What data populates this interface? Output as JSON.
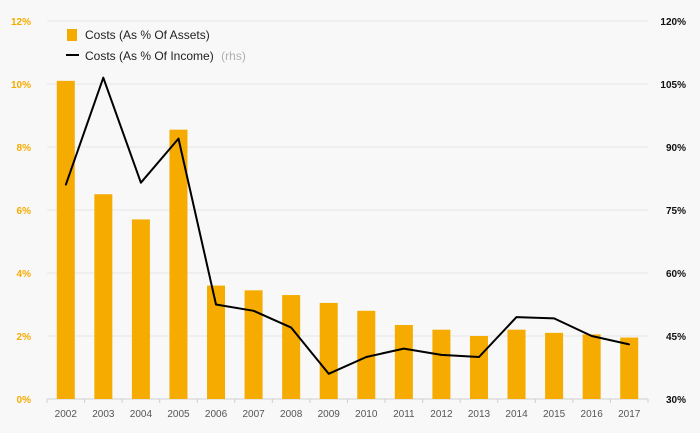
{
  "chart_data": {
    "type": "bar",
    "categories": [
      "2002",
      "2003",
      "2004",
      "2005",
      "2006",
      "2007",
      "2008",
      "2009",
      "2010",
      "2011",
      "2012",
      "2013",
      "2014",
      "2015",
      "2016",
      "2017"
    ],
    "series": [
      {
        "name": "Costs (As % Of Assets)",
        "type": "bar",
        "axis": "left",
        "values": [
          10.1,
          6.5,
          5.7,
          8.55,
          3.6,
          3.45,
          3.3,
          3.05,
          2.8,
          2.35,
          2.2,
          2.0,
          2.2,
          2.1,
          2.05,
          1.95
        ]
      },
      {
        "name": "Costs (As % Of Income)",
        "type": "line",
        "axis": "right",
        "values": [
          81,
          106.5,
          81.5,
          92,
          52.5,
          51,
          47,
          36,
          40,
          42,
          40.5,
          40,
          49.5,
          49.2,
          45,
          43
        ]
      }
    ],
    "y_left": {
      "ylim": [
        0,
        12
      ],
      "ticks": [
        0,
        2,
        4,
        6,
        8,
        10,
        12
      ],
      "tick_labels": [
        "0%",
        "2%",
        "4%",
        "6%",
        "8%",
        "10%",
        "12%"
      ]
    },
    "y_right": {
      "ylim": [
        30,
        120
      ],
      "ticks": [
        30,
        45,
        60,
        75,
        90,
        105,
        120
      ],
      "tick_labels": [
        "30%",
        "45%",
        "60%",
        "75%",
        "90%",
        "105%",
        "120%"
      ]
    },
    "legend": {
      "placement": "top-left",
      "rhs_suffix": "(rhs)"
    },
    "colors": {
      "bar": "#f5ab00",
      "line": "#000000",
      "left_ticks": "#f5ab00",
      "grid": "#e6e6e6"
    },
    "grid": true
  }
}
